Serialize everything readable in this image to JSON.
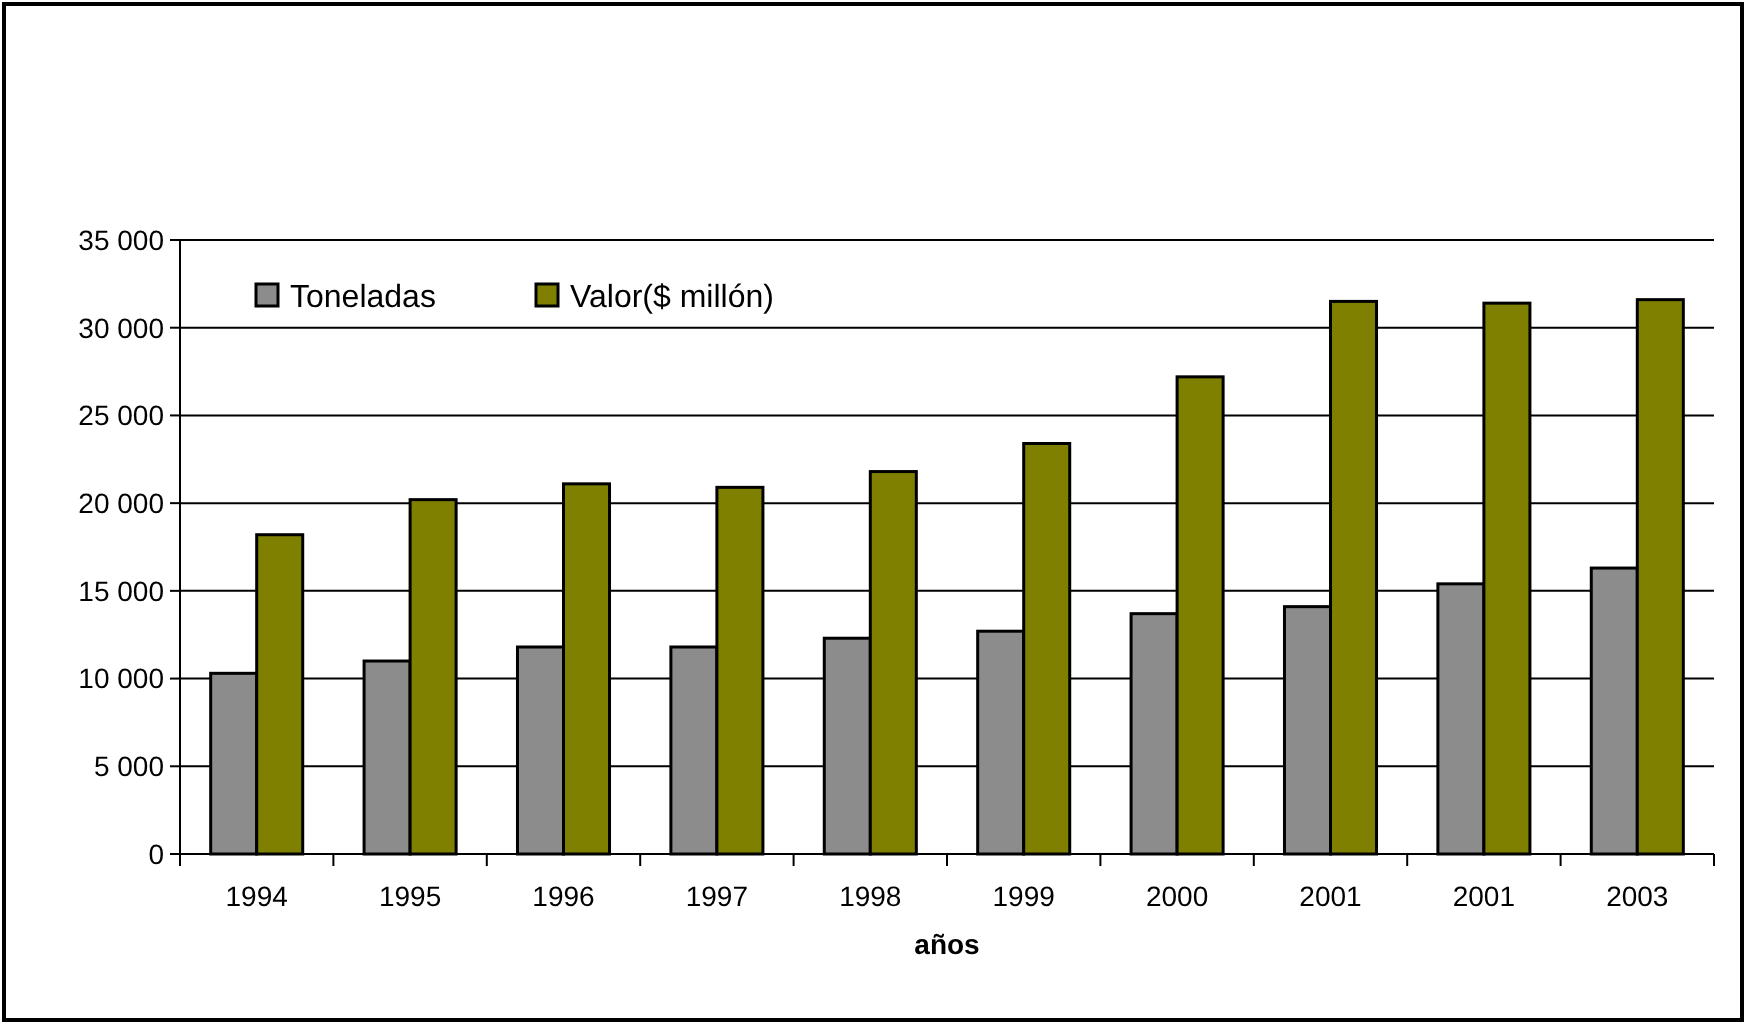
{
  "chart_data": {
    "type": "bar",
    "xlabel": "años",
    "categories": [
      "1994",
      "1995",
      "1996",
      "1997",
      "1998",
      "1999",
      "2000",
      "2001",
      "2001",
      "2003"
    ],
    "series": [
      {
        "name": "Toneladas",
        "color": "#8c8c8c",
        "values": [
          10300,
          11000,
          11800,
          11800,
          12300,
          12700,
          13700,
          14100,
          15400,
          16300
        ]
      },
      {
        "name": "Valor($ millón)",
        "color": "#808000",
        "values": [
          18200,
          20200,
          21100,
          20900,
          21800,
          23400,
          27200,
          31500,
          31400,
          31600
        ]
      }
    ],
    "ylim": [
      0,
      35000
    ],
    "yticks": [
      {
        "value": 0,
        "label": "0"
      },
      {
        "value": 5000,
        "label": "5 000"
      },
      {
        "value": 10000,
        "label": "10 000"
      },
      {
        "value": 15000,
        "label": "15 000"
      },
      {
        "value": 20000,
        "label": "20 000"
      },
      {
        "value": 25000,
        "label": "25 000"
      },
      {
        "value": 30000,
        "label": "30 000"
      },
      {
        "value": 35000,
        "label": "35 000"
      }
    ],
    "grid": "y",
    "legend": "top left"
  }
}
